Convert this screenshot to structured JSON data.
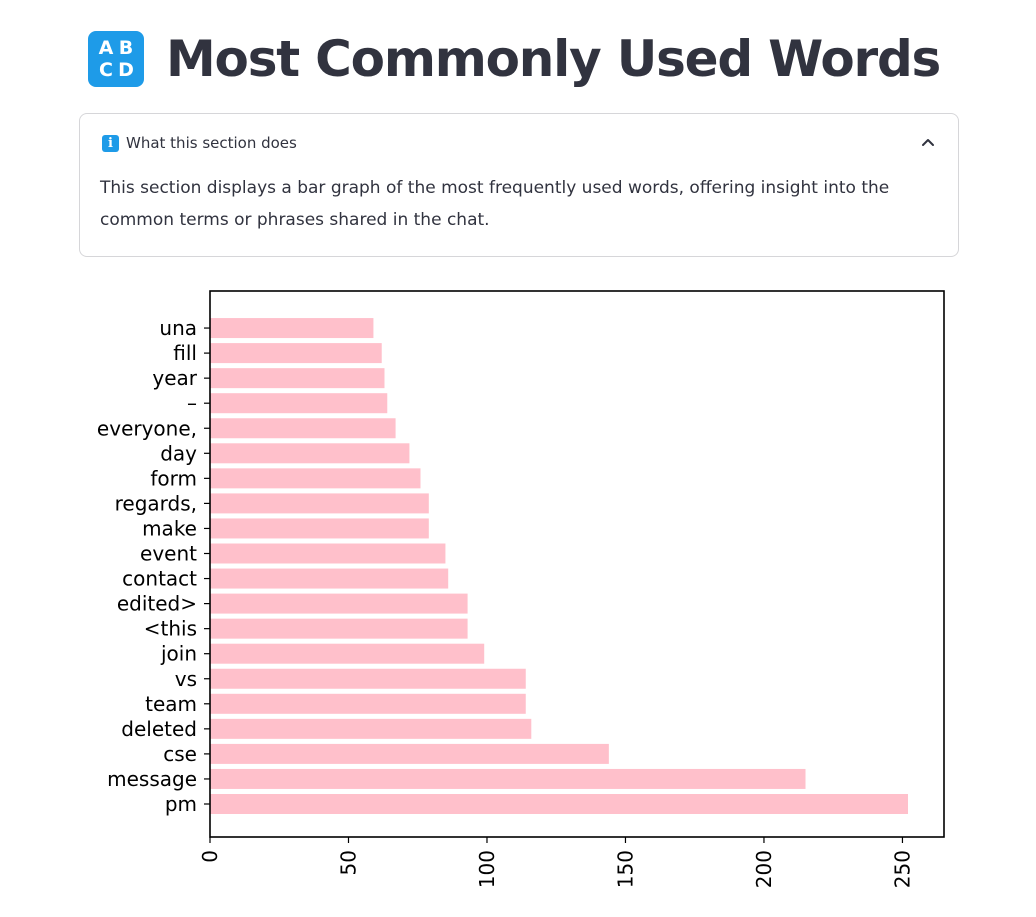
{
  "page": {
    "icon_letters": [
      "A",
      "B",
      "C",
      "D"
    ],
    "title": "Most Commonly Used Words"
  },
  "expander": {
    "title": "What this section does",
    "body": "This section displays a bar graph of the most frequently used words, offering insight into the common terms or phrases shared in the chat.",
    "expanded": true
  },
  "chart_data": {
    "type": "bar",
    "orientation": "horizontal",
    "categories": [
      "pm",
      "message",
      "cse",
      "deleted",
      "team",
      "vs",
      "join",
      "<this",
      "edited>",
      "contact",
      "event",
      "make",
      "regards,",
      "form",
      "day",
      "everyone,",
      "–",
      "year",
      "fill",
      "una"
    ],
    "values": [
      252,
      215,
      144,
      116,
      114,
      114,
      99,
      93,
      93,
      86,
      85,
      79,
      79,
      76,
      72,
      67,
      64,
      63,
      62,
      59
    ],
    "xlim": [
      0,
      265
    ],
    "xticks": [
      0,
      50,
      100,
      150,
      200,
      250
    ],
    "title": "",
    "xlabel": "",
    "ylabel": "",
    "bar_color": "#ffc0cb",
    "grid": false
  }
}
